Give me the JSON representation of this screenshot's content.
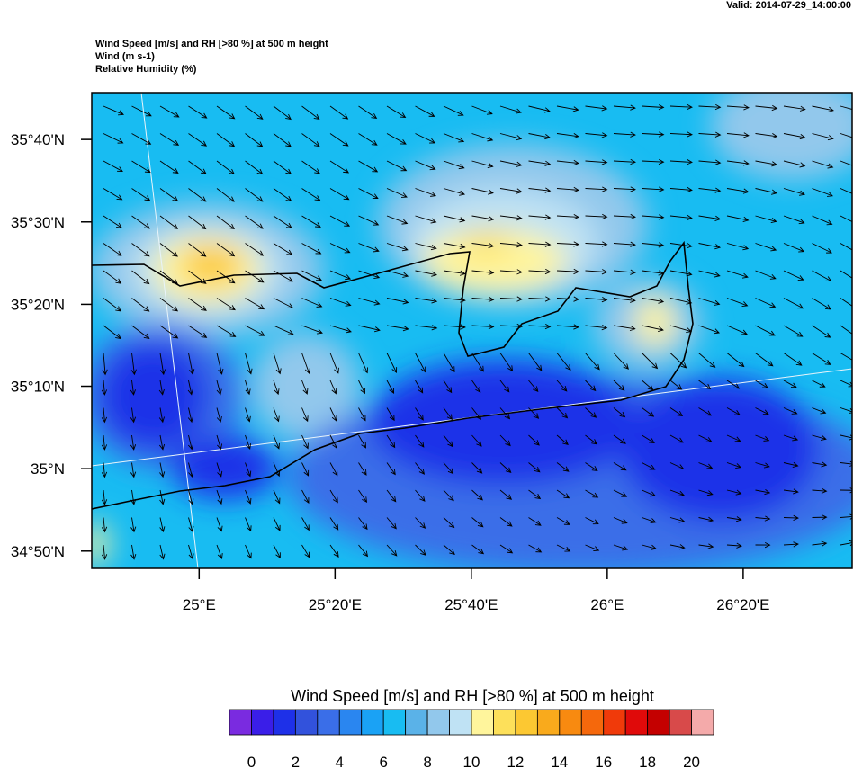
{
  "header": {
    "valid": "Valid: 2014-07-29_14:00:00",
    "lines": [
      "Wind Speed [m/s] and RH [>80 %] at 500 m height",
      "Wind   (m s-1)",
      "Relative Humidity   (%)"
    ]
  },
  "map": {
    "xlim": [
      24.737,
      26.6
    ],
    "ylim": [
      34.798,
      35.762
    ],
    "xticks": [
      {
        "value": 25,
        "label": "25°E"
      },
      {
        "value": 25.333,
        "label": "25°20'E"
      },
      {
        "value": 25.667,
        "label": "25°40'E"
      },
      {
        "value": 26,
        "label": "26°E"
      },
      {
        "value": 26.333,
        "label": "26°20'E"
      }
    ],
    "yticks": [
      {
        "value": 35.667,
        "label": "35°40'N"
      },
      {
        "value": 35.5,
        "label": "35°30'N"
      },
      {
        "value": 35.333,
        "label": "35°20'N"
      },
      {
        "value": 35.167,
        "label": "35°10'N"
      },
      {
        "value": 35,
        "label": "35°N"
      },
      {
        "value": 34.833,
        "label": "34°50'N"
      }
    ]
  },
  "colorbar": {
    "title": "Wind Speed [m/s] and RH [>80 %] at 500 m height",
    "labels": [
      0,
      2,
      4,
      6,
      8,
      10,
      12,
      14,
      16,
      18,
      20
    ],
    "colors": [
      "#7a2be0",
      "#3a1ee8",
      "#1e30e8",
      "#3252dc",
      "#3a6ee8",
      "#2a86f0",
      "#1aa2f5",
      "#18bcf2",
      "#5ab2e8",
      "#92c8ec",
      "#bfe2f4",
      "#fff59c",
      "#fde05a",
      "#fcc832",
      "#f9aa1c",
      "#f88a10",
      "#f5680c",
      "#f03a0a",
      "#e00a0a",
      "#c40000",
      "#d84a4a",
      "#f4aaaa"
    ]
  }
}
